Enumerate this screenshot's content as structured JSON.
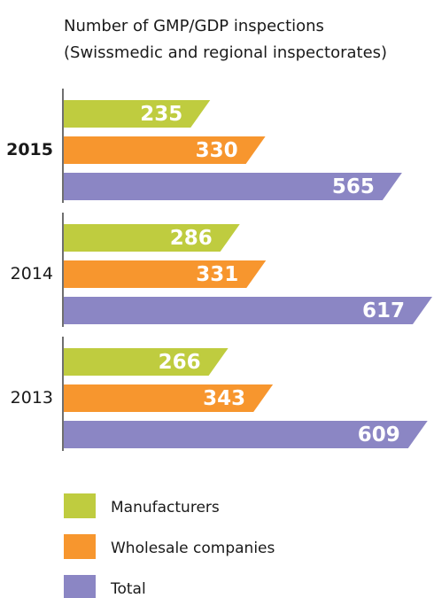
{
  "chart_data": {
    "type": "bar",
    "orientation": "horizontal",
    "title": [
      "Number of GMP/GDP inspections",
      "(Swissmedic and regional inspectorates)"
    ],
    "categories": [
      "2015",
      "2014",
      "2013"
    ],
    "series": [
      {
        "name": "Manufacturers",
        "color": "#bfcc3f",
        "values": [
          235,
          286,
          266
        ]
      },
      {
        "name": "Wholesale companies",
        "color": "#f7962e",
        "values": [
          330,
          331,
          343
        ]
      },
      {
        "name": "Total",
        "color": "#8b86c4",
        "values": [
          565,
          617,
          609
        ]
      }
    ]
  }
}
